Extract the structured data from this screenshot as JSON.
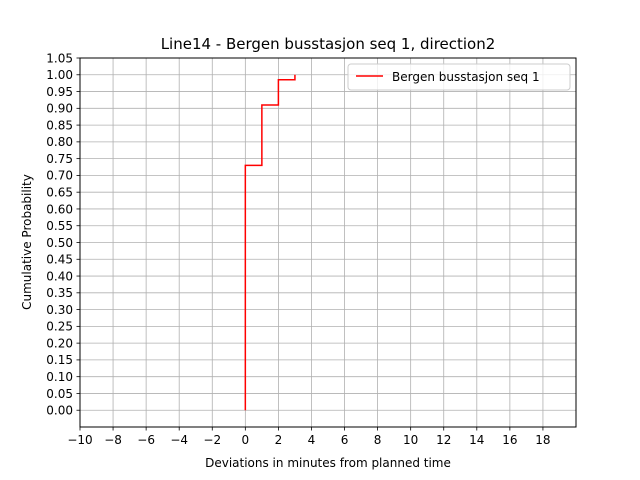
{
  "chart_data": {
    "type": "line",
    "drawstyle": "steps-post",
    "title": "Line14 - Bergen busstasjon seq 1, direction2",
    "xlabel": "Deviations in minutes from planned time",
    "ylabel": "Cumulative Probability",
    "xlim": [
      -10,
      20
    ],
    "ylim": [
      -0.05,
      1.05
    ],
    "xticks": [
      -10,
      -8,
      -6,
      -4,
      -2,
      0,
      2,
      4,
      6,
      8,
      10,
      12,
      14,
      16,
      18
    ],
    "xtick_labels": [
      "−10",
      "−8",
      "−6",
      "−4",
      "−2",
      "0",
      "2",
      "4",
      "6",
      "8",
      "10",
      "12",
      "14",
      "16",
      "18"
    ],
    "yticks": [
      0.0,
      0.05,
      0.1,
      0.15,
      0.2,
      0.25,
      0.3,
      0.35,
      0.4,
      0.45,
      0.5,
      0.55,
      0.6,
      0.65,
      0.7,
      0.75,
      0.8,
      0.85,
      0.9,
      0.95,
      1.0,
      1.05
    ],
    "ytick_labels": [
      "0.00",
      "0.05",
      "0.10",
      "0.15",
      "0.20",
      "0.25",
      "0.30",
      "0.35",
      "0.40",
      "0.45",
      "0.50",
      "0.55",
      "0.60",
      "0.65",
      "0.70",
      "0.75",
      "0.80",
      "0.85",
      "0.90",
      "0.95",
      "1.00",
      "1.05"
    ],
    "grid": true,
    "legend_position": "top-right",
    "series": [
      {
        "name": "Bergen busstasjon seq 1",
        "color": "#ff0000",
        "x": [
          0,
          0,
          1,
          2,
          3,
          3
        ],
        "y": [
          0.0,
          0.73,
          0.91,
          0.985,
          0.985,
          1.0
        ]
      }
    ]
  }
}
